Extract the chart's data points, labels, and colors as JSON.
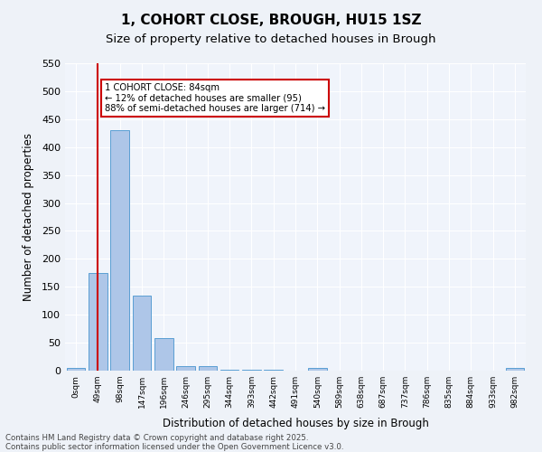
{
  "title_line1": "1, COHORT CLOSE, BROUGH, HU15 1SZ",
  "title_line2": "Size of property relative to detached houses in Brough",
  "xlabel": "Distribution of detached houses by size in Brough",
  "ylabel": "Number of detached properties",
  "bar_values": [
    5,
    175,
    430,
    135,
    58,
    8,
    8,
    2,
    1,
    1,
    0,
    5,
    0,
    0,
    0,
    0,
    0,
    0,
    0,
    0,
    5
  ],
  "bar_labels": [
    "0sqm",
    "49sqm",
    "98sqm",
    "147sqm",
    "196sqm",
    "246sqm",
    "295sqm",
    "344sqm",
    "393sqm",
    "442sqm",
    "491sqm",
    "540sqm",
    "589sqm",
    "638sqm",
    "687sqm",
    "737sqm",
    "786sqm",
    "835sqm",
    "884sqm",
    "933sqm",
    "982sqm"
  ],
  "bar_color": "#aec6e8",
  "bar_edge_color": "#5a9fd4",
  "highlight_bar_index": 1,
  "highlight_color": "#cc0000",
  "highlight_edge_color": "#cc0000",
  "annotation_text": "1 COHORT CLOSE: 84sqm\n← 12% of detached houses are smaller (95)\n88% of semi-detached houses are larger (714) →",
  "annotation_box_color": "#ffffff",
  "annotation_box_edge_color": "#cc0000",
  "ylim": [
    0,
    550
  ],
  "yticks": [
    0,
    50,
    100,
    150,
    200,
    250,
    300,
    350,
    400,
    450,
    500,
    550
  ],
  "bg_color": "#eef2f8",
  "plot_bg_color": "#f0f4fb",
  "grid_color": "#ffffff",
  "footer_text": "Contains HM Land Registry data © Crown copyright and database right 2025.\nContains public sector information licensed under the Open Government Licence v3.0.",
  "figsize": [
    6.0,
    5.0
  ],
  "dpi": 100
}
